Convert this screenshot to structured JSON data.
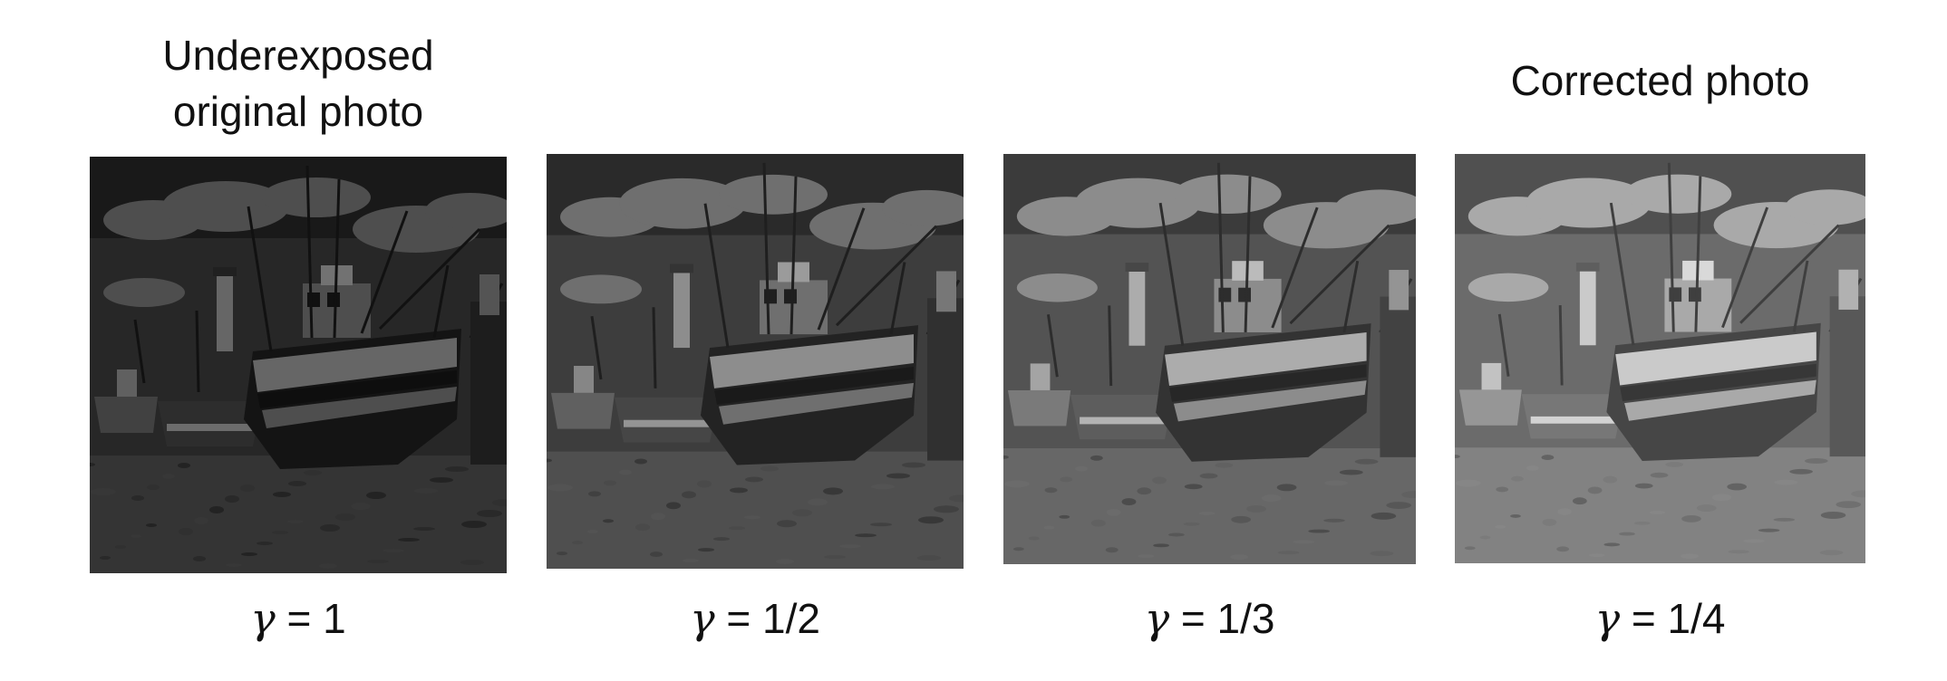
{
  "figure": {
    "background_color": "#ffffff",
    "panels": [
      {
        "heading": "Underexposed\noriginal photo",
        "gamma_symbol": "γ",
        "gamma_value": "= 1",
        "brightness": 0.22
      },
      {
        "heading": "",
        "gamma_symbol": "γ",
        "gamma_value": "= 1/2",
        "brightness": 0.45
      },
      {
        "heading": "",
        "gamma_symbol": "γ",
        "gamma_value": "= 1/3",
        "brightness": 0.62
      },
      {
        "heading": "Corrected photo",
        "gamma_symbol": "γ",
        "gamma_value": "= 1/4",
        "brightness": 0.78
      }
    ]
  }
}
